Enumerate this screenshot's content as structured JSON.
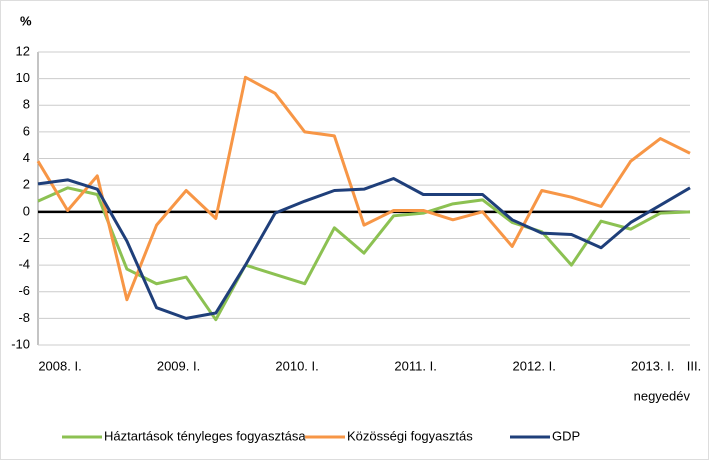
{
  "chart_data": {
    "type": "line",
    "y_label": "%",
    "x_label": "negyedév",
    "categories": [
      "2008. I.",
      null,
      null,
      null,
      "2009. I.",
      null,
      null,
      null,
      "2010. I.",
      null,
      null,
      null,
      "2011. I.",
      null,
      null,
      null,
      "2012. I.",
      null,
      null,
      null,
      "2013. I.",
      null,
      "III."
    ],
    "series": [
      {
        "name": "Háztartások tényleges fogyasztása",
        "color": "#8cc152",
        "values": [
          0.8,
          1.8,
          1.3,
          -4.3,
          -5.4,
          -4.9,
          -8.1,
          -4.0,
          -4.7,
          -5.4,
          -1.2,
          -3.1,
          -0.3,
          -0.1,
          0.6,
          0.9,
          -0.8,
          -1.5,
          -4.0,
          -0.7,
          -1.3,
          -0.1,
          0.0
        ]
      },
      {
        "name": "Közösségi fogyasztás",
        "color": "#f79646",
        "values": [
          3.8,
          0.1,
          2.7,
          -6.6,
          -1.0,
          1.6,
          -0.5,
          10.1,
          8.9,
          6.0,
          5.7,
          -1.0,
          0.1,
          0.1,
          -0.6,
          0.0,
          -2.6,
          1.6,
          1.1,
          0.4,
          3.8,
          5.5,
          4.4
        ]
      },
      {
        "name": "GDP",
        "color": "#1f3f7a",
        "values": [
          2.1,
          2.4,
          1.7,
          -2.2,
          -7.2,
          -8.0,
          -7.6,
          -4.0,
          -0.1,
          0.8,
          1.6,
          1.7,
          2.5,
          1.3,
          1.3,
          1.3,
          -0.6,
          -1.6,
          -1.7,
          -2.7,
          -0.8,
          0.5,
          1.8
        ]
      }
    ],
    "ylim": [
      -10,
      12
    ],
    "yticks": [
      -10,
      -8,
      -6,
      -4,
      -2,
      0,
      2,
      4,
      6,
      8,
      10,
      12
    ],
    "grid": true
  }
}
